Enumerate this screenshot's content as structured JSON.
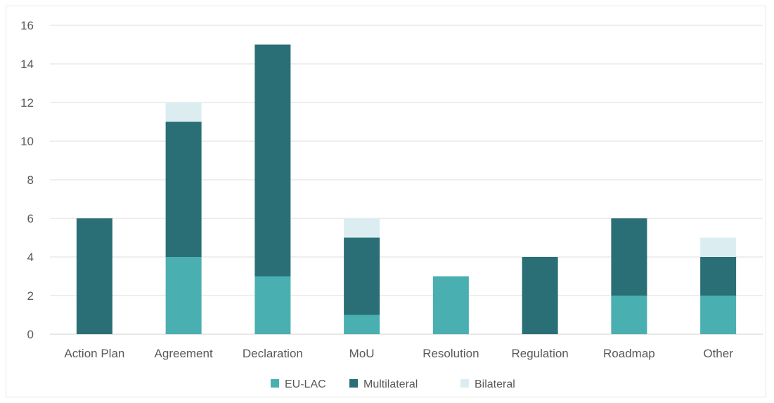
{
  "chart_data": {
    "type": "bar",
    "stacked": true,
    "title": "",
    "xlabel": "",
    "ylabel": "",
    "categories": [
      "Action Plan",
      "Agreement",
      "Declaration",
      "MoU",
      "Resolution",
      "Regulation",
      "Roadmap",
      "Other"
    ],
    "series": [
      {
        "name": "EU-LAC",
        "color": "#4aafb0",
        "values": [
          0,
          4,
          3,
          1,
          3,
          0,
          2,
          2
        ]
      },
      {
        "name": "Multilateral",
        "color": "#2a6f76",
        "values": [
          6,
          7,
          12,
          4,
          0,
          4,
          4,
          2
        ]
      },
      {
        "name": "Bilateral",
        "color": "#dcedf2",
        "values": [
          0,
          1,
          0,
          1,
          0,
          0,
          0,
          1
        ]
      }
    ],
    "ylim": [
      0,
      16
    ],
    "yticks": [
      "0",
      "2",
      "4",
      "6",
      "8",
      "10",
      "12",
      "14",
      "16"
    ],
    "grid": true,
    "legend_position": "bottom"
  }
}
